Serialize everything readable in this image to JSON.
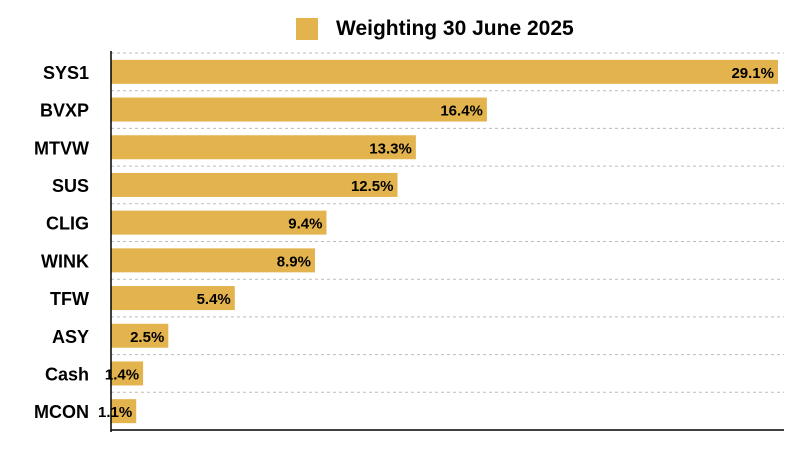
{
  "chart_data": {
    "type": "bar",
    "orientation": "horizontal",
    "categories": [
      "SYS1",
      "BVXP",
      "MTVW",
      "SUS",
      "CLIG",
      "WINK",
      "TFW",
      "ASY",
      "Cash",
      "MCON"
    ],
    "series": [
      {
        "name": "Weighting 30 June 2025",
        "values": [
          29.1,
          16.4,
          13.3,
          12.5,
          9.4,
          8.9,
          5.4,
          2.5,
          1.4,
          1.1
        ],
        "labels": [
          "29.1%",
          "16.4%",
          "13.3%",
          "12.5%",
          "9.4%",
          "8.9%",
          "5.4%",
          "2.5%",
          "1.4%",
          "1.1%"
        ]
      }
    ],
    "xlim": [
      0,
      29.1
    ],
    "grid": "horizontal dashed",
    "legend_position": "top",
    "colors": {
      "bar": "#E3B34D",
      "grid": "#BBBBBB",
      "axis": "#000000",
      "text": "#000000"
    }
  }
}
